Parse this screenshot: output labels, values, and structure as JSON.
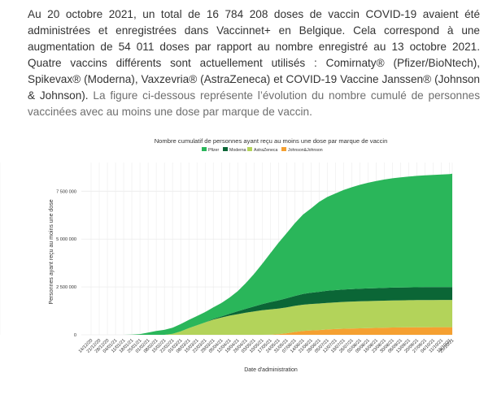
{
  "intro": {
    "part1": "Au 20 octobre 2021, un total de 16 784 208 doses de vaccin COVID-19 avaient été administrées et enregistrées dans Vaccinnet+ en Belgique. Cela correspond à une augmentation de 54 011 doses par rapport au nombre enregistré au 13 octobre 2021. Quatre vaccins différents sont actuellement utilisés : Comirnaty® (Pfizer/BioNtech), Spikevax® (Moderna), Vaxzevria® (AstraZeneca) et COVID-19 Vaccine Janssen® (Johnson & Johnson).",
    "part2": " La figure ci-dessous représente l’évolution du nombre cumulé de personnes vaccinées avec au moins une dose par marque de vaccin."
  },
  "colors": {
    "pfizer": "#2ab65a",
    "moderna": "#0b6636",
    "astrazeneca": "#b3d35a",
    "johnson": "#f5a031",
    "grid": "#ececec"
  },
  "chart_data": {
    "type": "area",
    "stacked": true,
    "title": "Nombre cumulatif de personnes ayant reçu au moins une dose par marque de vaccin",
    "xlabel": "Date d'administration",
    "ylabel": "Personnes ayant reçu au moins une dose",
    "ylim": [
      0,
      9000000
    ],
    "legend_position": "top",
    "y_ticks": [
      {
        "value": 0,
        "label": "0"
      },
      {
        "value": 2500000,
        "label": "2 500 000"
      },
      {
        "value": 5000000,
        "label": "5 000 000"
      },
      {
        "value": 7500000,
        "label": "7 500 000"
      }
    ],
    "x_ticks": [
      "14/12/20",
      "21/12/20",
      "28/12/20",
      "04/01/21",
      "11/01/21",
      "18/01/21",
      "25/01/21",
      "01/02/21",
      "08/02/21",
      "15/02/21",
      "22/02/21",
      "01/03/21",
      "08/03/21",
      "15/03/21",
      "22/03/21",
      "29/03/21",
      "05/04/21",
      "12/04/21",
      "19/04/21",
      "26/04/21",
      "03/05/21",
      "10/05/21",
      "17/05/21",
      "24/05/21",
      "31/05/21",
      "07/06/21",
      "14/06/21",
      "21/06/21",
      "28/06/21",
      "05/07/21",
      "12/07/21",
      "19/07/21",
      "26/07/21",
      "02/08/21",
      "09/08/21",
      "16/08/21",
      "23/08/21",
      "30/08/21",
      "06/09/21",
      "13/09/21",
      "20/09/21",
      "27/09/21",
      "04/10/21",
      "11/10/21",
      "18/10/21",
      "25/10/21",
      "01/11/21"
    ],
    "x_index": [
      0,
      3,
      6,
      9,
      12,
      15,
      18,
      21,
      24,
      27,
      30,
      33,
      36,
      39,
      42,
      45,
      48,
      51,
      54,
      57,
      60,
      63,
      66,
      69,
      72,
      75,
      78,
      81,
      84,
      87,
      90,
      93,
      96,
      99,
      102,
      105,
      108,
      111,
      114,
      117,
      120,
      123,
      126,
      129,
      132,
      133
    ],
    "series": [
      {
        "name": "Johnson&Johnson",
        "color_key": "johnson",
        "values": [
          0,
          0,
          0,
          0,
          0,
          0,
          0,
          0,
          0,
          0,
          0,
          0,
          0,
          0,
          0,
          0,
          0,
          0,
          0,
          0,
          0,
          0,
          5000,
          30000,
          80000,
          150000,
          200000,
          230000,
          250000,
          280000,
          300000,
          320000,
          330000,
          340000,
          350000,
          360000,
          370000,
          380000,
          385000,
          390000,
          393000,
          396000,
          398000,
          400000,
          400000,
          400000
        ]
      },
      {
        "name": "AstraZeneca",
        "color_key": "astrazeneca",
        "values": [
          0,
          0,
          0,
          0,
          0,
          0,
          0,
          0,
          0,
          0,
          50000,
          180000,
          350000,
          500000,
          650000,
          800000,
          900000,
          1000000,
          1080000,
          1160000,
          1220000,
          1280000,
          1320000,
          1340000,
          1350000,
          1360000,
          1370000,
          1380000,
          1385000,
          1390000,
          1395000,
          1400000,
          1405000,
          1408000,
          1410000,
          1412000,
          1414000,
          1415000,
          1416000,
          1417000,
          1418000,
          1419000,
          1419000,
          1420000,
          1420000,
          1420000
        ]
      },
      {
        "name": "Moderna",
        "color_key": "moderna",
        "values": [
          0,
          0,
          0,
          0,
          0,
          0,
          0,
          0,
          0,
          0,
          0,
          0,
          0,
          0,
          0,
          30000,
          60000,
          100000,
          150000,
          200000,
          260000,
          320000,
          380000,
          430000,
          480000,
          520000,
          560000,
          590000,
          610000,
          630000,
          640000,
          650000,
          655000,
          660000,
          663000,
          666000,
          668000,
          670000,
          672000,
          673000,
          674000,
          675000,
          676000,
          677000,
          678000,
          678000
        ]
      },
      {
        "name": "Pfizer",
        "color_key": "pfizer",
        "values": [
          0,
          0,
          0,
          0,
          0,
          10000,
          40000,
          120000,
          200000,
          260000,
          320000,
          380000,
          430000,
          480000,
          540000,
          600000,
          700000,
          850000,
          1050000,
          1350000,
          1700000,
          2100000,
          2550000,
          3000000,
          3400000,
          3800000,
          4150000,
          4400000,
          4700000,
          4900000,
          5050000,
          5200000,
          5320000,
          5430000,
          5520000,
          5600000,
          5660000,
          5710000,
          5750000,
          5790000,
          5820000,
          5840000,
          5860000,
          5880000,
          5900000,
          5920000
        ]
      }
    ]
  }
}
